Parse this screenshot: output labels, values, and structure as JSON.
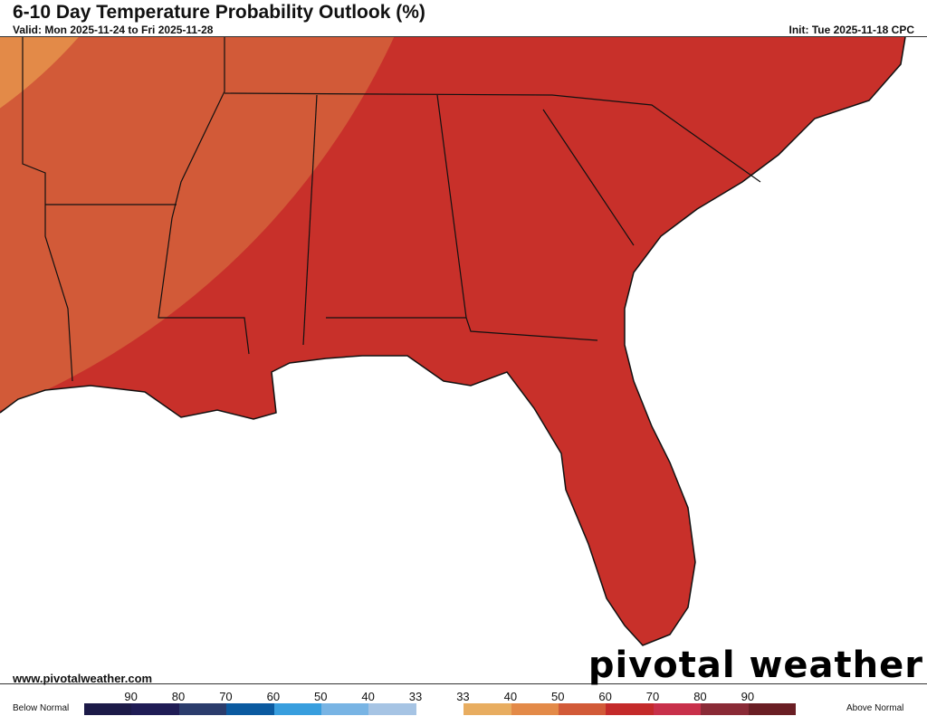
{
  "header": {
    "title": "6-10 Day Temperature Probability Outlook (%)",
    "valid": "Valid: Mon 2025-11-24 to Fri 2025-11-28",
    "init": "Init: Tue 2025-11-18 CPC"
  },
  "footer": {
    "website": "www.pivotalweather.com",
    "logo": "pivotal weather"
  },
  "map": {
    "region": "Southeastern United States",
    "land_color": "#c8302a",
    "outer_band_color": "#d25a38",
    "far_band_color": "#e38a48",
    "water_color": "#ffffff"
  },
  "legend": {
    "below_label": "Below Normal",
    "above_label": "Above Normal",
    "labels": [
      "90",
      "80",
      "70",
      "60",
      "50",
      "40",
      "33",
      "33",
      "40",
      "50",
      "60",
      "70",
      "80",
      "90"
    ],
    "colors": [
      "#1c1a48",
      "#1f1c55",
      "#2b3c6c",
      "#0b5aa0",
      "#389ede",
      "#78b4e4",
      "#a6c4e4",
      "#ffffff",
      "#e8ad60",
      "#e38a48",
      "#d25a38",
      "#c42a2a",
      "#c8304a",
      "#8a2a36",
      "#6a1e24"
    ]
  }
}
